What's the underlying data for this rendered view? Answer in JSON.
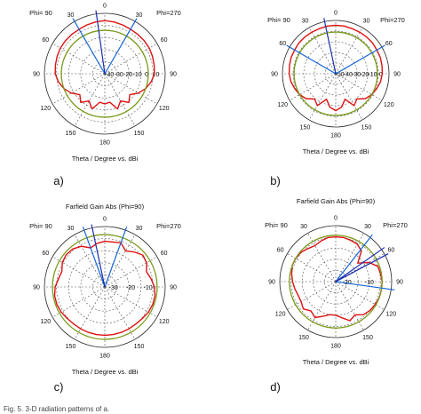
{
  "caption": "Fig. 5. 3-D radiation patterns of a.",
  "chart_data": [
    {
      "type": "polar",
      "panel_label": "a)",
      "title": "",
      "xlabel": "Theta / Degree vs. dBi",
      "phi_left": "Phi= 90",
      "phi_right": "Phi=270",
      "angle_ticks": [
        "0",
        "30",
        "60",
        "90",
        "120",
        "150",
        "180",
        "150",
        "120",
        "90",
        "60",
        "30"
      ],
      "radial_ticks": [
        "-40",
        "-30",
        "-20",
        "-10",
        "0",
        "10"
      ],
      "series": [
        {
          "color": "#dd1111",
          "points": [
            [
              0,
              4
            ],
            [
              10,
              3.5
            ],
            [
              20,
              3
            ],
            [
              30,
              2.5
            ],
            [
              40,
              2.5
            ],
            [
              50,
              2.5
            ],
            [
              60,
              2.5
            ],
            [
              70,
              2
            ],
            [
              80,
              1.5
            ],
            [
              90,
              1
            ],
            [
              100,
              -1
            ],
            [
              110,
              -4
            ],
            [
              120,
              -8
            ],
            [
              130,
              -13
            ],
            [
              140,
              -9
            ],
            [
              150,
              -14
            ],
            [
              160,
              -9
            ],
            [
              170,
              -16
            ],
            [
              180,
              -15
            ],
            [
              190,
              -16
            ],
            [
              200,
              -9
            ],
            [
              210,
              -14
            ],
            [
              220,
              -9
            ],
            [
              230,
              -13
            ],
            [
              240,
              -8
            ],
            [
              250,
              -4
            ],
            [
              260,
              -1
            ],
            [
              270,
              1
            ],
            [
              280,
              1.5
            ],
            [
              290,
              2
            ],
            [
              300,
              2.5
            ],
            [
              310,
              2.5
            ],
            [
              320,
              2.5
            ],
            [
              330,
              2.5
            ],
            [
              340,
              3
            ],
            [
              350,
              3.5
            ]
          ]
        },
        {
          "color": "#7a9a1a",
          "constant": -4
        }
      ],
      "markers": [
        {
          "color": "#1565d8",
          "angle": 30
        },
        {
          "color": "#1565d8",
          "angle": -30
        },
        {
          "color": "#1a2fb0",
          "angle": 8
        }
      ]
    },
    {
      "type": "polar",
      "panel_label": "b)",
      "title": "",
      "xlabel": "Theta / Degree vs. dBi",
      "phi_left": "Phi= 90",
      "phi_right": "Phi=270",
      "angle_ticks": [
        "0",
        "30",
        "60",
        "90",
        "120",
        "150",
        "180",
        "150",
        "120",
        "90",
        "60",
        "30"
      ],
      "radial_ticks": [
        "-50",
        "-40",
        "-30",
        "-20",
        "-10",
        "0"
      ],
      "series": [
        {
          "color": "#dd1111",
          "points": [
            [
              0,
              0
            ],
            [
              10,
              0
            ],
            [
              20,
              -0.5
            ],
            [
              30,
              -0.5
            ],
            [
              40,
              -0.5
            ],
            [
              50,
              -0.5
            ],
            [
              60,
              -1
            ],
            [
              70,
              -1
            ],
            [
              80,
              -1.5
            ],
            [
              90,
              -2
            ],
            [
              100,
              -3
            ],
            [
              110,
              -5
            ],
            [
              120,
              -7
            ],
            [
              130,
              -10
            ],
            [
              140,
              -16
            ],
            [
              150,
              -12
            ],
            [
              160,
              -22
            ],
            [
              170,
              -15
            ],
            [
              180,
              -12
            ],
            [
              190,
              -15
            ],
            [
              200,
              -22
            ],
            [
              210,
              -12
            ],
            [
              220,
              -16
            ],
            [
              230,
              -10
            ],
            [
              240,
              -7
            ],
            [
              250,
              -5
            ],
            [
              260,
              -3
            ],
            [
              270,
              -2
            ],
            [
              280,
              -1.5
            ],
            [
              290,
              -1
            ],
            [
              300,
              -1
            ],
            [
              310,
              -0.5
            ],
            [
              320,
              -0.5
            ],
            [
              330,
              -0.5
            ],
            [
              340,
              -0.5
            ],
            [
              350,
              0
            ]
          ]
        },
        {
          "color": "#7a9a1a",
          "constant": -7
        }
      ],
      "markers": [
        {
          "color": "#1565d8",
          "angle": 60
        },
        {
          "color": "#1565d8",
          "angle": -60
        },
        {
          "color": "#1a2fb0",
          "angle": 12
        }
      ]
    },
    {
      "type": "polar",
      "panel_label": "c)",
      "title": "Farfield Gain Abs (Phi=90)",
      "xlabel": "Theta / Degree vs. dBi",
      "phi_left": "Phi= 90",
      "phi_right": "Phi=270",
      "angle_ticks": [
        "0",
        "30",
        "60",
        "90",
        "120",
        "150",
        "180",
        "150",
        "120",
        "90",
        "60",
        "30"
      ],
      "radial_ticks": [
        "-30",
        "-20",
        "-10"
      ],
      "series": [
        {
          "color": "#dd1111",
          "points": [
            [
              0,
              -6
            ],
            [
              10,
              -7
            ],
            [
              20,
              -9
            ],
            [
              30,
              -5
            ],
            [
              40,
              -3
            ],
            [
              50,
              -2.5
            ],
            [
              60,
              -3.5
            ],
            [
              70,
              -6
            ],
            [
              80,
              -5
            ],
            [
              90,
              -3
            ],
            [
              100,
              -2
            ],
            [
              110,
              -2
            ],
            [
              120,
              -2.5
            ],
            [
              130,
              -3.5
            ],
            [
              140,
              -4
            ],
            [
              150,
              -4
            ],
            [
              160,
              -4
            ],
            [
              170,
              -4
            ],
            [
              180,
              -4
            ],
            [
              190,
              -4
            ],
            [
              200,
              -4
            ],
            [
              210,
              -4
            ],
            [
              220,
              -4
            ],
            [
              230,
              -3.5
            ],
            [
              240,
              -2.5
            ],
            [
              250,
              -2
            ],
            [
              260,
              -2
            ],
            [
              270,
              -3
            ],
            [
              280,
              -5
            ],
            [
              290,
              -7
            ],
            [
              300,
              -4
            ],
            [
              310,
              -3
            ],
            [
              320,
              -6
            ],
            [
              330,
              -9
            ],
            [
              340,
              -5
            ],
            [
              350,
              -6
            ]
          ]
        },
        {
          "color": "#7a9a1a",
          "constant": -1
        }
      ],
      "markers": [
        {
          "color": "#1565d8",
          "angle": 20
        },
        {
          "color": "#1565d8",
          "angle": -20
        },
        {
          "color": "#1a2fb0",
          "angle": 12
        }
      ]
    },
    {
      "type": "polar",
      "panel_label": "d)",
      "title": "Farfield Gain Abs (Phi=90)",
      "xlabel": "Theta / Degree vs. dBi",
      "phi_left": "Phi= 90",
      "phi_right": "Phi=270",
      "angle_ticks": [
        "0",
        "30",
        "60",
        "90",
        "120",
        "150",
        "180",
        "150",
        "120",
        "90",
        "60",
        "30"
      ],
      "radial_ticks": [
        "-20",
        "-10"
      ],
      "series": [
        {
          "color": "#dd1111",
          "points": [
            [
              0,
              -2
            ],
            [
              10,
              -2
            ],
            [
              20,
              -3
            ],
            [
              30,
              -4
            ],
            [
              40,
              -3
            ],
            [
              50,
              -1.5
            ],
            [
              60,
              -1
            ],
            [
              70,
              -1
            ],
            [
              80,
              -2
            ],
            [
              90,
              -3
            ],
            [
              100,
              -4
            ],
            [
              110,
              -5
            ],
            [
              120,
              -5
            ],
            [
              130,
              -3.5
            ],
            [
              140,
              -6
            ],
            [
              150,
              -4
            ],
            [
              160,
              -7
            ],
            [
              170,
              -9
            ],
            [
              180,
              -9
            ],
            [
              190,
              -7
            ],
            [
              200,
              -4
            ],
            [
              210,
              -6
            ],
            [
              220,
              -3
            ],
            [
              230,
              -2
            ],
            [
              240,
              -1.5
            ],
            [
              250,
              -1
            ],
            [
              260,
              -1
            ],
            [
              270,
              -1
            ],
            [
              280,
              -1.5
            ],
            [
              290,
              -2
            ],
            [
              300,
              -6
            ],
            [
              310,
              -12
            ],
            [
              320,
              -5
            ],
            [
              330,
              -3
            ],
            [
              340,
              -2.5
            ],
            [
              350,
              -2
            ]
          ]
        },
        {
          "color": "#7a9a1a",
          "constant": -1
        }
      ],
      "markers": [
        {
          "color": "#1565d8",
          "angle": -38
        },
        {
          "color": "#1565d8",
          "angle": -98
        },
        {
          "color": "#1a2fb0",
          "angle": -55
        },
        {
          "color": "#1a2fb0",
          "angle": -62
        }
      ]
    }
  ]
}
